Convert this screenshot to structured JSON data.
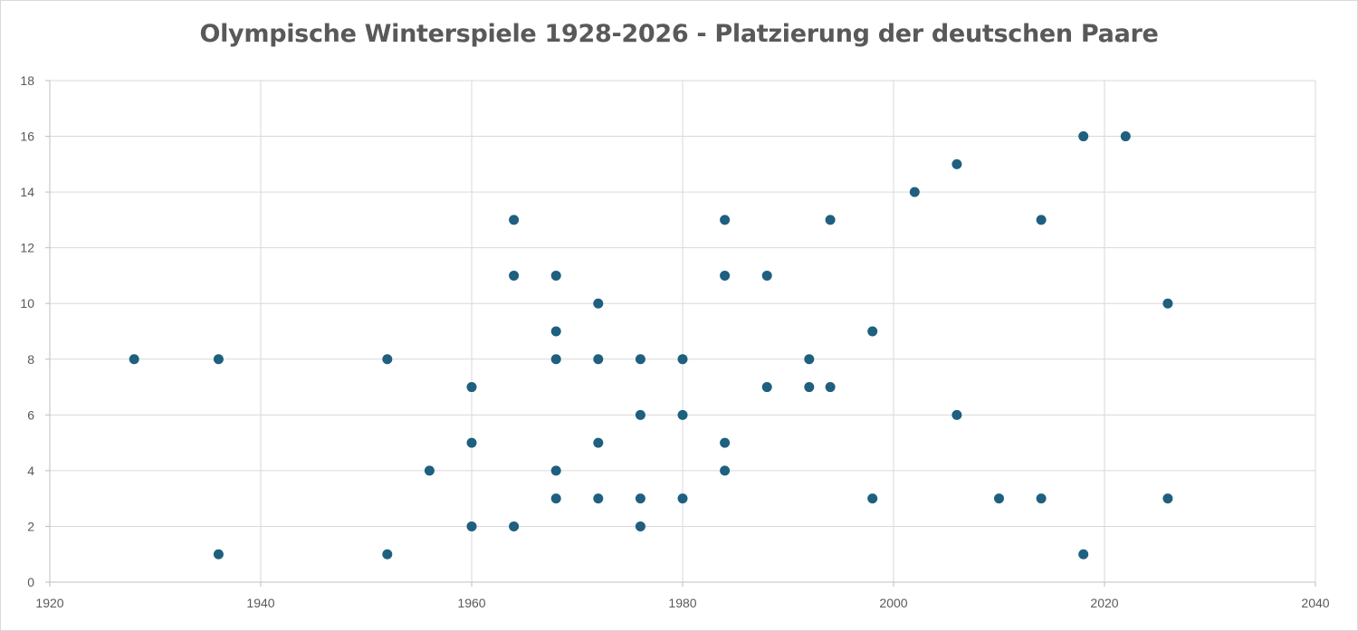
{
  "chart_data": {
    "type": "scatter",
    "title": "Olympische Winterspiele 1928-2026 - Platzierung der deutschen Paare",
    "xlabel": "",
    "ylabel": "",
    "xlim": [
      1920,
      2040
    ],
    "ylim": [
      0,
      18
    ],
    "xticks": [
      1920,
      1940,
      1960,
      1980,
      2000,
      2020,
      2040
    ],
    "yticks": [
      0,
      2,
      4,
      6,
      8,
      10,
      12,
      14,
      16,
      18
    ],
    "grid": true,
    "marker_color": "#1f5f7f",
    "series": [
      {
        "points": [
          [
            1928,
            8
          ],
          [
            1936,
            8
          ],
          [
            1936,
            1
          ],
          [
            1952,
            8
          ],
          [
            1952,
            1
          ],
          [
            1956,
            4
          ],
          [
            1960,
            7
          ],
          [
            1960,
            5
          ],
          [
            1960,
            2
          ],
          [
            1964,
            13
          ],
          [
            1964,
            11
          ],
          [
            1964,
            2
          ],
          [
            1968,
            11
          ],
          [
            1968,
            9
          ],
          [
            1968,
            8
          ],
          [
            1968,
            4
          ],
          [
            1968,
            3
          ],
          [
            1972,
            10
          ],
          [
            1972,
            8
          ],
          [
            1972,
            5
          ],
          [
            1972,
            3
          ],
          [
            1976,
            8
          ],
          [
            1976,
            6
          ],
          [
            1976,
            3
          ],
          [
            1976,
            2
          ],
          [
            1980,
            8
          ],
          [
            1980,
            6
          ],
          [
            1980,
            3
          ],
          [
            1984,
            13
          ],
          [
            1984,
            11
          ],
          [
            1984,
            5
          ],
          [
            1984,
            4
          ],
          [
            1988,
            11
          ],
          [
            1988,
            7
          ],
          [
            1992,
            8
          ],
          [
            1992,
            7
          ],
          [
            1994,
            13
          ],
          [
            1994,
            7
          ],
          [
            1998,
            9
          ],
          [
            1998,
            3
          ],
          [
            2002,
            14
          ],
          [
            2006,
            15
          ],
          [
            2006,
            6
          ],
          [
            2010,
            3
          ],
          [
            2014,
            13
          ],
          [
            2014,
            3
          ],
          [
            2018,
            16
          ],
          [
            2018,
            1
          ],
          [
            2022,
            16
          ],
          [
            2026,
            10
          ],
          [
            2026,
            3
          ]
        ]
      }
    ]
  }
}
